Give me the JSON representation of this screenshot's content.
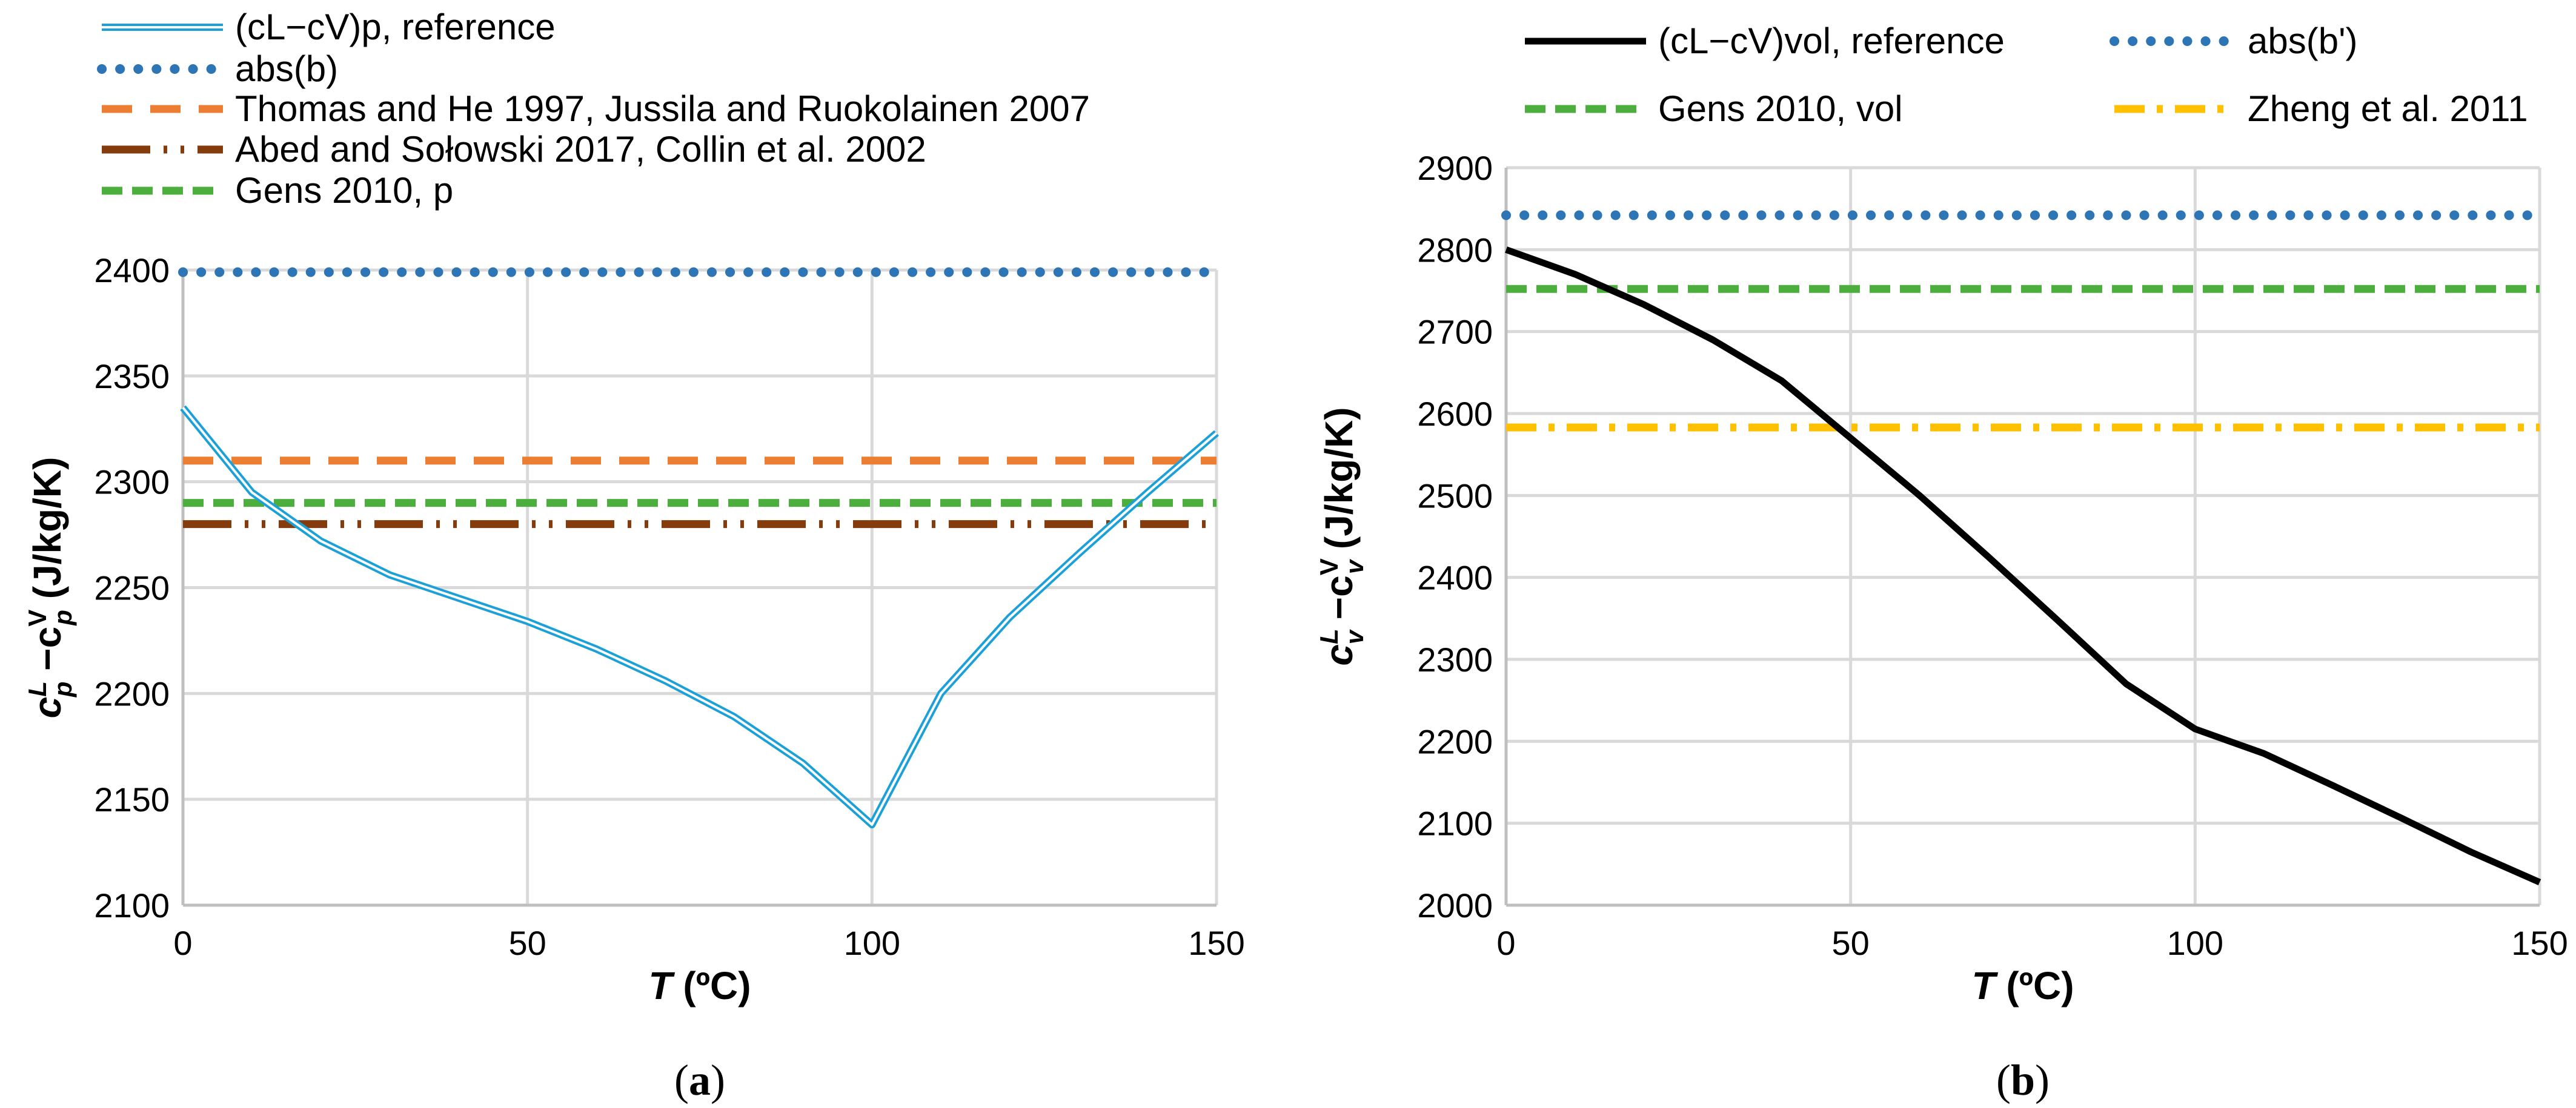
{
  "chart_data": [
    {
      "id": "a",
      "type": "line",
      "caption": "a",
      "xlabel": {
        "var": "T",
        "unit": " (ºC)"
      },
      "ylabel": {
        "c": "c",
        "sup1": "L",
        "sub1": "p",
        "minus": " −c",
        "sup2": "V",
        "sub2": "p",
        "unit": " (J/kg/K)"
      },
      "xlim": [
        0,
        150
      ],
      "ylim": [
        2100,
        2400
      ],
      "xticks": [
        0,
        50,
        100,
        150
      ],
      "yticks": [
        2100,
        2150,
        2200,
        2250,
        2300,
        2350,
        2400
      ],
      "grid": true,
      "legend_position": "top-left, stacked above plot",
      "series": [
        {
          "name": "(cL−cV)p, reference",
          "color": "#1ba1d7",
          "style": "double",
          "x": [
            0,
            10,
            20,
            30,
            40,
            50,
            60,
            70,
            80,
            90,
            100,
            110,
            120,
            130,
            140,
            150
          ],
          "y": [
            2335,
            2295,
            2272,
            2256,
            2245,
            2234,
            2221,
            2206,
            2189,
            2167,
            2138,
            2200,
            2236,
            2266,
            2295,
            2323
          ]
        },
        {
          "name": "abs(b)",
          "color": "#2e75b6",
          "style": "dotted",
          "x": [
            0,
            150
          ],
          "y": [
            2399,
            2399
          ]
        },
        {
          "name": "Thomas and He 1997, Jussila and Ruokolainen 2007",
          "color": "#ed7d31",
          "style": "dashed",
          "x": [
            0,
            150
          ],
          "y": [
            2310,
            2310
          ]
        },
        {
          "name": "Abed and Sołowski 2017, Collin et al. 2002",
          "color": "#843c0c",
          "style": "dash-dot-dot",
          "x": [
            0,
            150
          ],
          "y": [
            2280,
            2280
          ]
        },
        {
          "name": "Gens 2010, p",
          "color": "#4cae3c",
          "style": "dashed-short",
          "x": [
            0,
            150
          ],
          "y": [
            2290,
            2290
          ]
        }
      ]
    },
    {
      "id": "b",
      "type": "line",
      "caption": "b",
      "xlabel": {
        "var": "T",
        "unit": " (ºC)"
      },
      "ylabel": {
        "c": "c",
        "sup1": "L",
        "sub1": "v",
        "minus": " −c",
        "sup2": "V",
        "sub2": "v",
        "unit": " (J/kg/K)"
      },
      "xlim": [
        0,
        150
      ],
      "ylim": [
        2000,
        2900
      ],
      "xticks": [
        0,
        50,
        100,
        150
      ],
      "yticks": [
        2000,
        2100,
        2200,
        2300,
        2400,
        2500,
        2600,
        2700,
        2800,
        2900
      ],
      "grid": true,
      "legend_position": "top, two columns above plot",
      "series": [
        {
          "name": "(cL−cV)vol, reference",
          "color": "#000000",
          "style": "solid",
          "x": [
            0,
            10,
            20,
            30,
            40,
            50,
            60,
            70,
            80,
            90,
            100,
            110,
            120,
            130,
            140,
            150
          ],
          "y": [
            2800,
            2770,
            2733,
            2690,
            2640,
            2570,
            2500,
            2425,
            2348,
            2270,
            2215,
            2185,
            2146,
            2106,
            2065,
            2028
          ]
        },
        {
          "name": "abs(b')",
          "color": "#2e75b6",
          "style": "dotted",
          "x": [
            0,
            150
          ],
          "y": [
            2842,
            2842
          ]
        },
        {
          "name": "Gens 2010, vol",
          "color": "#4cae3c",
          "style": "dashed-short",
          "x": [
            0,
            150
          ],
          "y": [
            2752,
            2752
          ]
        },
        {
          "name": "Zheng et al. 2011",
          "color": "#ffc000",
          "style": "dash-dot",
          "x": [
            0,
            150
          ],
          "y": [
            2583,
            2583
          ]
        }
      ]
    }
  ]
}
